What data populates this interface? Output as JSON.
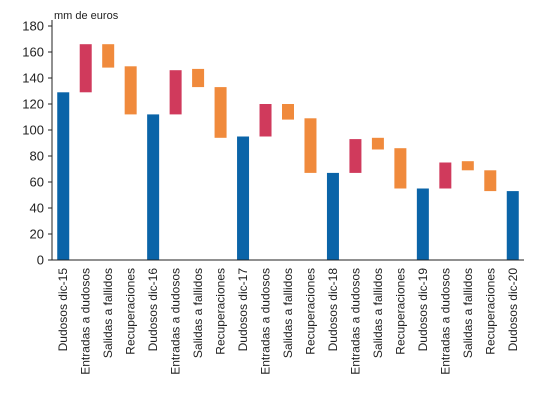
{
  "chart_data": {
    "type": "bar",
    "subtype": "waterfall",
    "unit_label": "mm de euros",
    "ylim": [
      0,
      180
    ],
    "yticks": [
      0,
      20,
      40,
      60,
      80,
      100,
      120,
      140,
      160,
      180
    ],
    "grid": false,
    "legend": "none",
    "colors": {
      "stock": "#0a64a8",
      "entradas": "#d03a5c",
      "salidas": "#f08a3c",
      "recuperaciones": "#f08a3c",
      "axis": "#222222"
    },
    "bars": [
      {
        "label": "Dudosos dic-15",
        "kind": "stock",
        "low": 0,
        "high": 129
      },
      {
        "label": "Entradas a dudosos",
        "kind": "entradas",
        "low": 129,
        "high": 166
      },
      {
        "label": "Salidas a fallidos",
        "kind": "salidas",
        "low": 148,
        "high": 166
      },
      {
        "label": "Recuperaciones",
        "kind": "recuperaciones",
        "low": 112,
        "high": 149
      },
      {
        "label": "Dudosos dic-16",
        "kind": "stock",
        "low": 0,
        "high": 112
      },
      {
        "label": "Entradas a dudosos",
        "kind": "entradas",
        "low": 112,
        "high": 146
      },
      {
        "label": "Salidas a fallidos",
        "kind": "salidas",
        "low": 133,
        "high": 147
      },
      {
        "label": "Recuperaciones",
        "kind": "recuperaciones",
        "low": 94,
        "high": 133
      },
      {
        "label": "Dudosos dic-17",
        "kind": "stock",
        "low": 0,
        "high": 95
      },
      {
        "label": "Entradas a dudosos",
        "kind": "entradas",
        "low": 95,
        "high": 120
      },
      {
        "label": "Salidas a fallidos",
        "kind": "salidas",
        "low": 108,
        "high": 120
      },
      {
        "label": "Recuperaciones",
        "kind": "recuperaciones",
        "low": 67,
        "high": 109
      },
      {
        "label": "Dudosos dic-18",
        "kind": "stock",
        "low": 0,
        "high": 67
      },
      {
        "label": "Entradas a dudosos",
        "kind": "entradas",
        "low": 67,
        "high": 93
      },
      {
        "label": "Salidas a fallidos",
        "kind": "salidas",
        "low": 85,
        "high": 94
      },
      {
        "label": "Recuperaciones",
        "kind": "recuperaciones",
        "low": 55,
        "high": 86
      },
      {
        "label": "Dudosos dic-19",
        "kind": "stock",
        "low": 0,
        "high": 55
      },
      {
        "label": "Entradas a dudosos",
        "kind": "entradas",
        "low": 55,
        "high": 75
      },
      {
        "label": "Salidas a fallidos",
        "kind": "salidas",
        "low": 69,
        "high": 76
      },
      {
        "label": "Recuperaciones",
        "kind": "recuperaciones",
        "low": 53,
        "high": 69
      },
      {
        "label": "Dudosos dic-20",
        "kind": "stock",
        "low": 0,
        "high": 53
      }
    ]
  }
}
